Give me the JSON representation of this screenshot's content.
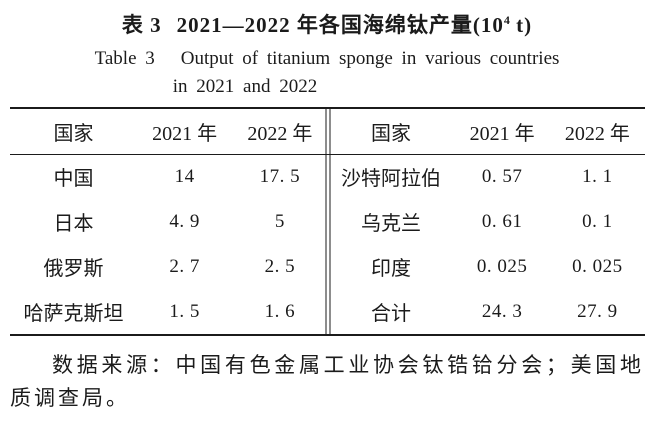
{
  "title": {
    "zh_label": "表 3",
    "zh_main": "2021—2022 年各国海绵钛产量(10",
    "zh_sup": "4",
    "zh_tail": " t)",
    "en_label": "Table 3",
    "en_line1": "Output of titanium sponge in various countries",
    "en_line2": "in 2021 and 2022"
  },
  "table": {
    "left": {
      "headers": [
        "国家",
        "2021 年",
        "2022 年"
      ],
      "rows": [
        [
          "中国",
          "14",
          "17. 5"
        ],
        [
          "日本",
          "4. 9",
          "5"
        ],
        [
          "俄罗斯",
          "2. 7",
          "2. 5"
        ],
        [
          "哈萨克斯坦",
          "1. 5",
          "1. 6"
        ]
      ]
    },
    "right": {
      "headers": [
        "国家",
        "2021 年",
        "2022 年"
      ],
      "rows": [
        [
          "沙特阿拉伯",
          "0. 57",
          "1. 1"
        ],
        [
          "乌克兰",
          "0. 61",
          "0. 1"
        ],
        [
          "印度",
          "0. 025",
          "0. 025"
        ],
        [
          "合计",
          "24. 3",
          "27. 9"
        ]
      ]
    }
  },
  "footnote": "数据来源：中国有色金属工业协会钛锆铪分会；美国地质调查局。",
  "colors": {
    "ink": "#1b1b1b",
    "background": "#ffffff"
  }
}
